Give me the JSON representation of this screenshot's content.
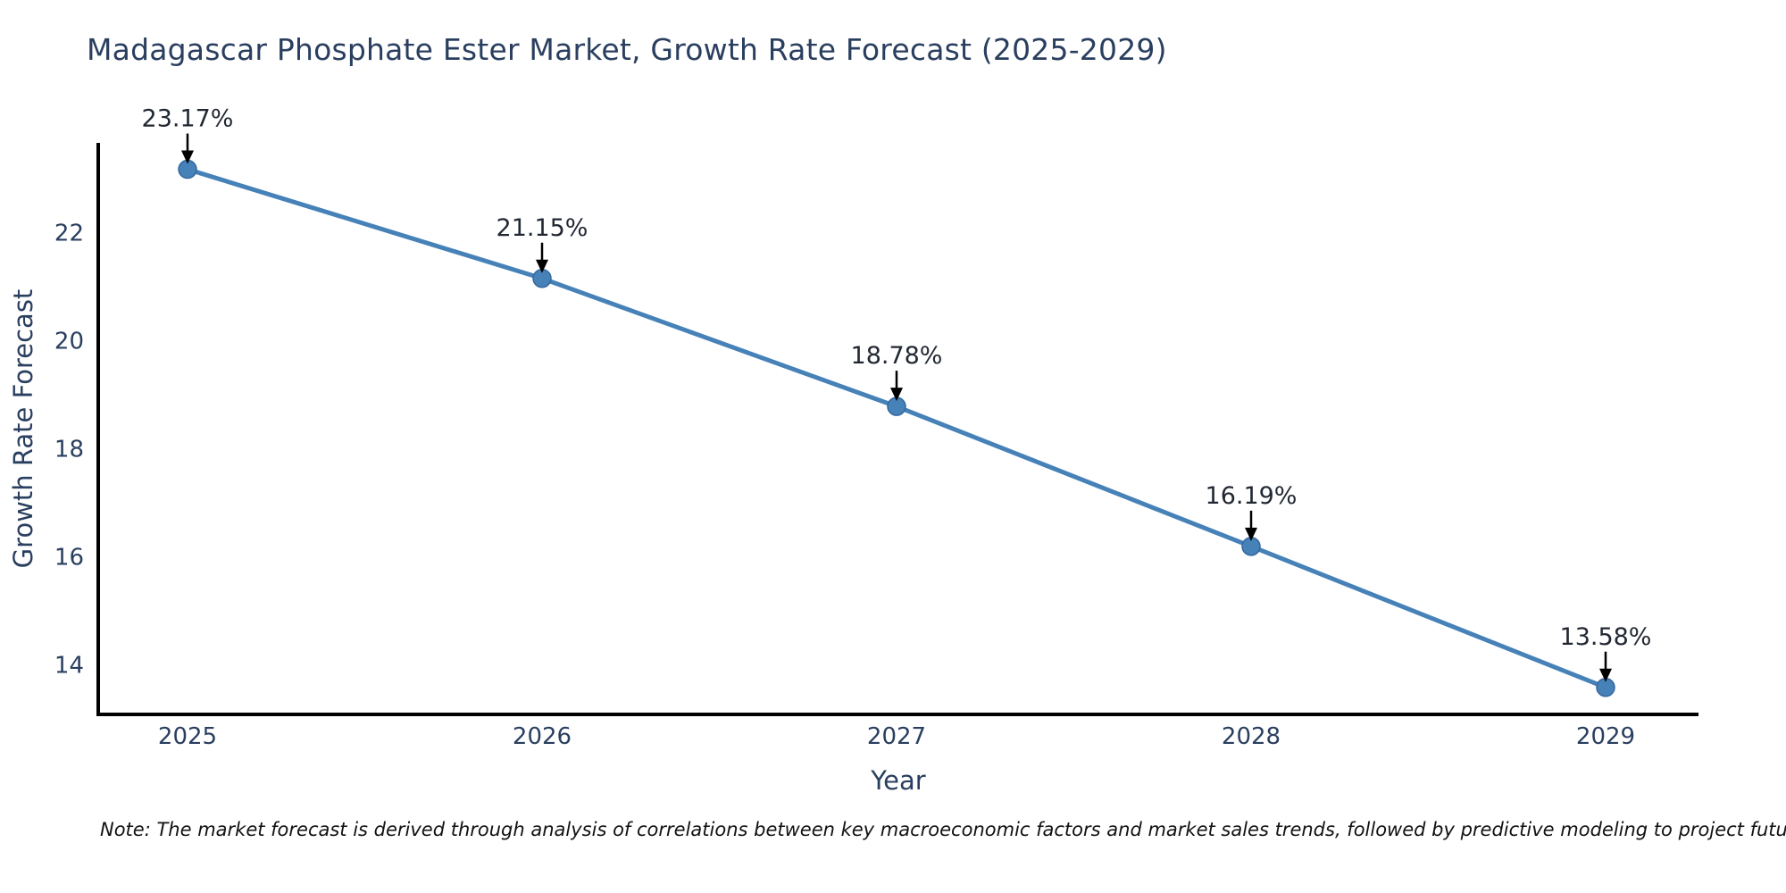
{
  "chart_data": {
    "type": "line",
    "title": "Madagascar Phosphate Ester Market, Growth Rate Forecast (2025-2029)",
    "xlabel": "Year",
    "ylabel": "Growth Rate Forecast",
    "x": [
      2025,
      2026,
      2027,
      2028,
      2029
    ],
    "values": [
      23.17,
      21.15,
      18.78,
      16.19,
      13.58
    ],
    "point_labels": [
      "23.17%",
      "21.15%",
      "18.78%",
      "16.19%",
      "13.58%"
    ],
    "y_ticks": [
      14,
      16,
      18,
      20,
      22
    ],
    "ylim": [
      13.1,
      23.7
    ],
    "grid": false,
    "legend_position": "none",
    "line_color": "#4681b8",
    "marker_color": "#4681b8",
    "marker_edge_color": "#35689f",
    "axis_color": "#000000",
    "text_color": "#2a3f5f",
    "annotation_color": "#222833",
    "arrow_color": "#000000",
    "note": "Note: The market forecast is derived through analysis of correlations between key macroeconomic factors and market sales trends, followed by predictive modeling to project future sales"
  }
}
